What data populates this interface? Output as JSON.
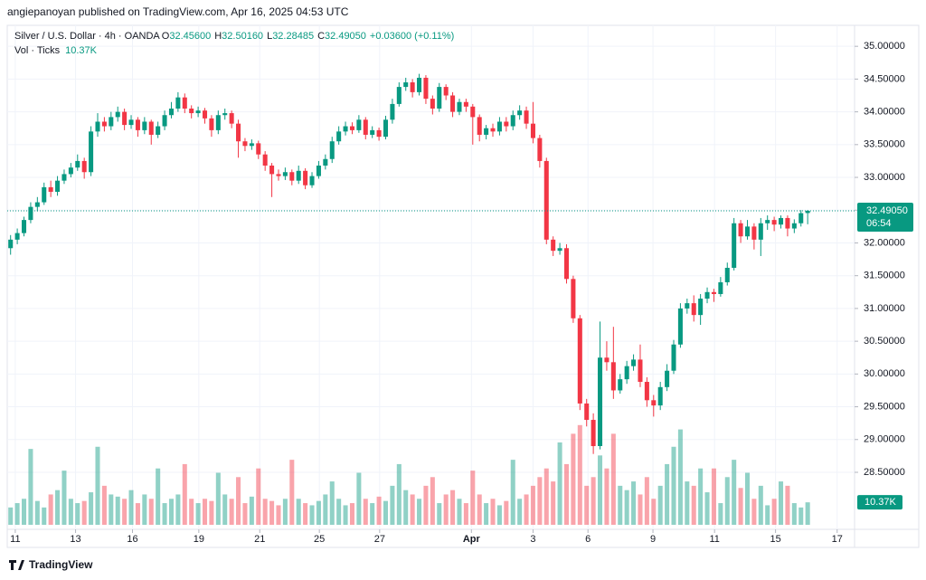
{
  "attribution": "angiepanoyan published on TradingView.com, Apr 16, 2025 04:53 UTC",
  "footer_logo": "TradingView",
  "chart_data": {
    "type": "candlestick",
    "symbol": "Silver / U.S. Dollar · 4h · OANDA",
    "ohlc_labels": [
      {
        "key": "O",
        "value": "32.45600"
      },
      {
        "key": "H",
        "value": "32.50160"
      },
      {
        "key": "L",
        "value": "32.28485"
      },
      {
        "key": "C",
        "value": "32.49050"
      }
    ],
    "change_label": "+0.03600 (+0.11%)",
    "volume_name": "Vol · Ticks",
    "volume_last_label": "10.37K",
    "last_price": {
      "value": 32.4905,
      "label": "32.49050"
    },
    "countdown": "06:54",
    "up_color": "#089981",
    "down_color": "#f23645",
    "grid": true,
    "xlim": [
      -0.5,
      126
    ],
    "ylim": [
      27.63,
      35.32
    ],
    "volume_ylim": [
      0,
      48
    ],
    "xticks": [
      {
        "value": 0.7,
        "label": "11"
      },
      {
        "value": 9.7,
        "label": "13"
      },
      {
        "value": 18.2,
        "label": "16"
      },
      {
        "value": 28.1,
        "label": "19"
      },
      {
        "value": 37.2,
        "label": "21"
      },
      {
        "value": 46.1,
        "label": "25"
      },
      {
        "value": 55.1,
        "label": "27"
      },
      {
        "value": 68.8,
        "label": "Apr"
      },
      {
        "value": 78,
        "label": "3"
      },
      {
        "value": 86.2,
        "label": "6"
      },
      {
        "value": 95.9,
        "label": "9"
      },
      {
        "value": 105.1,
        "label": "11"
      },
      {
        "value": 114.2,
        "label": "15"
      },
      {
        "value": 123.4,
        "label": "17"
      }
    ],
    "yticks": [
      {
        "value": 28.5,
        "label": "28.50000"
      },
      {
        "value": 29,
        "label": "29.00000"
      },
      {
        "value": 29.5,
        "label": "29.50000"
      },
      {
        "value": 30,
        "label": "30.00000"
      },
      {
        "value": 30.5,
        "label": "30.50000"
      },
      {
        "value": 31,
        "label": "31.00000"
      },
      {
        "value": 31.5,
        "label": "31.50000"
      },
      {
        "value": 32,
        "label": "32.00000"
      },
      {
        "value": 32.5,
        "label": "32.50000"
      },
      {
        "value": 33,
        "label": "33.00000"
      },
      {
        "value": 33.5,
        "label": "33.50000"
      },
      {
        "value": 34,
        "label": "34.00000"
      },
      {
        "value": 34.5,
        "label": "34.50000"
      },
      {
        "value": 35,
        "label": "35.00000"
      }
    ],
    "open": [
      31.92,
      32.05,
      32.15,
      32.35,
      32.55,
      32.62,
      32.85,
      32.78,
      32.95,
      33.05,
      33.15,
      33.25,
      33.08,
      33.7,
      33.85,
      33.78,
      33.92,
      34.0,
      33.8,
      33.88,
      33.72,
      33.85,
      33.65,
      33.78,
      33.95,
      34.05,
      34.22,
      34.05,
      33.98,
      34.02,
      33.9,
      33.72,
      33.95,
      33.98,
      33.82,
      33.55,
      33.48,
      33.52,
      33.35,
      33.18,
      33.05,
      33.02,
      33.08,
      32.95,
      33.1,
      32.88,
      33.02,
      33.18,
      33.28,
      33.55,
      33.7,
      33.78,
      33.72,
      33.88,
      33.65,
      33.72,
      33.62,
      33.88,
      34.12,
      34.38,
      34.45,
      34.3,
      34.52,
      34.2,
      34.05,
      34.38,
      34.25,
      34.0,
      34.15,
      34.08,
      33.92,
      33.65,
      33.75,
      33.7,
      33.85,
      33.78,
      33.95,
      34.02,
      33.82,
      33.6,
      33.25,
      32.05,
      31.88,
      31.92,
      31.45,
      30.85,
      29.55,
      29.3,
      28.9,
      30.25,
      30.18,
      29.75,
      29.92,
      30.12,
      30.22,
      29.88,
      29.6,
      29.52,
      29.8,
      30.05,
      30.45,
      31.0,
      31.08,
      30.9,
      31.15,
      31.25,
      31.22,
      31.4,
      31.62,
      32.3,
      32.1,
      32.25,
      32.05,
      32.3,
      32.35,
      32.28,
      32.38,
      32.22,
      32.3,
      32.456
    ],
    "high": [
      32.12,
      32.22,
      32.4,
      32.62,
      32.7,
      32.92,
      32.95,
      33.02,
      33.12,
      33.22,
      33.35,
      33.3,
      33.78,
      33.98,
      33.92,
      34.0,
      34.08,
      34.05,
      33.95,
      33.92,
      33.92,
      33.88,
      33.85,
      34.02,
      34.15,
      34.3,
      34.28,
      34.1,
      34.08,
      34.06,
      33.95,
      34.02,
      34.05,
      34.02,
      33.88,
      33.6,
      33.58,
      33.56,
      33.4,
      33.22,
      33.12,
      33.15,
      33.12,
      33.18,
      33.14,
      33.08,
      33.25,
      33.35,
      33.62,
      33.78,
      33.85,
      33.84,
      33.95,
      33.92,
      33.78,
      33.76,
      33.94,
      34.2,
      34.45,
      34.52,
      34.5,
      34.58,
      34.56,
      34.25,
      34.44,
      34.42,
      34.3,
      34.2,
      34.2,
      34.12,
      33.96,
      33.8,
      33.82,
      33.92,
      33.92,
      34.02,
      34.1,
      34.08,
      34.15,
      33.65,
      33.3,
      32.1,
      32.0,
      31.98,
      31.5,
      30.9,
      29.62,
      29.4,
      30.8,
      30.5,
      30.72,
      30.0,
      30.2,
      30.3,
      30.45,
      29.95,
      29.68,
      29.88,
      30.15,
      30.52,
      31.08,
      31.15,
      31.2,
      31.22,
      31.32,
      31.3,
      31.48,
      31.7,
      32.38,
      32.35,
      32.35,
      32.3,
      32.38,
      32.42,
      32.4,
      32.42,
      32.42,
      32.36,
      32.5,
      32.5016
    ],
    "low": [
      31.82,
      31.98,
      32.1,
      32.3,
      32.48,
      32.58,
      32.7,
      32.72,
      32.9,
      33.0,
      33.1,
      32.98,
      33.02,
      33.62,
      33.7,
      33.72,
      33.85,
      33.72,
      33.74,
      33.62,
      33.66,
      33.5,
      33.6,
      33.72,
      33.9,
      34.0,
      33.98,
      33.9,
      33.92,
      33.82,
      33.62,
      33.66,
      33.88,
      33.75,
      33.3,
      33.4,
      33.42,
      33.28,
      33.1,
      32.7,
      32.95,
      32.96,
      32.88,
      32.9,
      32.82,
      32.84,
      32.98,
      33.12,
      33.22,
      33.5,
      33.64,
      33.66,
      33.68,
      33.58,
      33.6,
      33.56,
      33.58,
      33.82,
      34.08,
      34.32,
      34.22,
      34.25,
      34.12,
      33.96,
      34.0,
      34.18,
      33.92,
      33.95,
      34.0,
      33.5,
      33.55,
      33.58,
      33.62,
      33.64,
      33.7,
      33.72,
      33.88,
      33.74,
      33.52,
      33.15,
      31.98,
      31.8,
      31.82,
      31.38,
      30.78,
      29.45,
      29.2,
      28.78,
      28.85,
      30.05,
      29.62,
      29.7,
      29.85,
      30.05,
      29.8,
      29.5,
      29.35,
      29.45,
      29.74,
      30.0,
      30.4,
      30.92,
      30.8,
      30.75,
      31.08,
      31.1,
      31.18,
      31.35,
      31.58,
      32.0,
      32.05,
      31.9,
      31.8,
      32.2,
      32.18,
      32.22,
      32.1,
      32.15,
      32.25,
      32.28485
    ],
    "close": [
      32.05,
      32.15,
      32.35,
      32.55,
      32.62,
      32.85,
      32.78,
      32.95,
      33.05,
      33.15,
      33.25,
      33.08,
      33.7,
      33.85,
      33.78,
      33.92,
      34.0,
      33.8,
      33.88,
      33.72,
      33.85,
      33.65,
      33.78,
      33.95,
      34.05,
      34.22,
      34.05,
      33.98,
      34.02,
      33.9,
      33.72,
      33.95,
      33.98,
      33.82,
      33.55,
      33.48,
      33.52,
      33.35,
      33.18,
      33.05,
      33.02,
      33.08,
      32.95,
      33.1,
      32.88,
      33.02,
      33.18,
      33.28,
      33.55,
      33.7,
      33.78,
      33.72,
      33.88,
      33.65,
      33.72,
      33.62,
      33.88,
      34.12,
      34.38,
      34.45,
      34.3,
      34.52,
      34.2,
      34.05,
      34.38,
      34.25,
      34.0,
      34.15,
      34.08,
      33.92,
      33.65,
      33.75,
      33.7,
      33.85,
      33.78,
      33.95,
      34.02,
      33.82,
      33.6,
      33.25,
      32.05,
      31.88,
      31.92,
      31.45,
      30.85,
      29.55,
      29.3,
      28.9,
      30.25,
      30.18,
      29.75,
      29.92,
      30.12,
      30.22,
      29.88,
      29.6,
      29.52,
      29.8,
      30.05,
      30.45,
      31.0,
      31.08,
      30.9,
      31.15,
      31.25,
      31.22,
      31.4,
      31.62,
      32.3,
      32.1,
      32.25,
      32.05,
      32.3,
      32.35,
      32.28,
      32.38,
      32.22,
      32.3,
      32.4545,
      32.4905
    ],
    "volume": [
      8,
      10,
      12,
      35,
      11,
      8,
      14,
      16,
      25,
      12,
      10,
      11,
      15,
      36,
      18,
      14,
      13,
      12,
      16,
      10,
      14,
      12,
      26,
      10,
      12,
      14,
      28,
      12,
      10,
      12,
      11,
      24,
      14,
      12,
      22,
      10,
      13,
      26,
      12,
      11,
      9,
      12,
      30,
      12,
      10,
      9,
      11,
      14,
      20,
      12,
      9,
      10,
      24,
      12,
      10,
      13,
      11,
      18,
      28,
      16,
      14,
      12,
      18,
      22,
      10,
      14,
      16,
      12,
      10,
      25,
      14,
      10,
      12,
      9,
      11,
      30,
      12,
      14,
      18,
      22,
      26,
      20,
      38,
      28,
      42,
      46,
      18,
      22,
      32,
      26,
      42,
      18,
      16,
      20,
      14,
      22,
      12,
      18,
      28,
      36,
      44,
      20,
      18,
      26,
      15,
      26,
      10,
      22,
      30,
      17,
      24,
      12,
      18,
      9,
      12,
      20,
      18,
      10,
      8,
      10.37
    ]
  }
}
